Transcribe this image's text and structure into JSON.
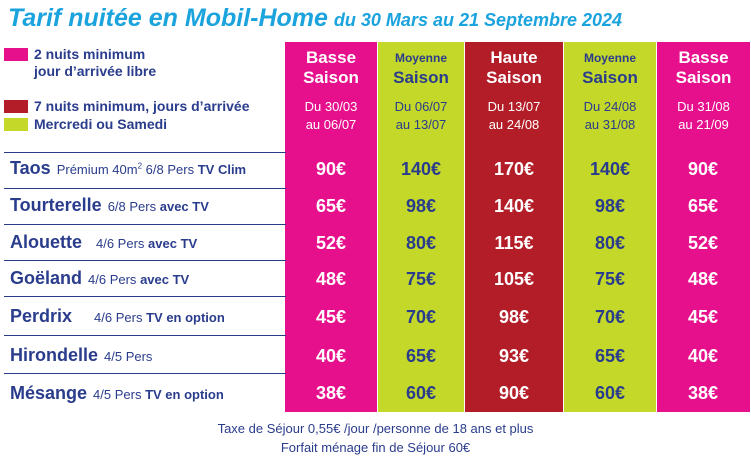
{
  "title": {
    "main": "Tarif nuitée en Mobil-Home",
    "sub": "du 30 Mars au 21 Septembre 2024"
  },
  "legend": [
    {
      "color": "#e6108c",
      "line1": "2 nuits minimum",
      "line2": "jour d’arrivée libre"
    },
    {
      "color": "#b21d28",
      "line1": "7 nuits minimum, jours d’arrivée",
      "line2": ""
    },
    {
      "color": "#c4d82a",
      "line1": "Mercredi ou Samedi",
      "line2": ""
    }
  ],
  "seasons": [
    {
      "l1": "Basse",
      "l2": "Saison",
      "d1": "Du 30/03",
      "d2": "au 06/07"
    },
    {
      "l1": "Moyenne",
      "l2": "Saison",
      "d1": "Du 06/07",
      "d2": "au 13/07"
    },
    {
      "l1": "Haute",
      "l2": "Saison",
      "d1": "Du 13/07",
      "d2": "au 24/08"
    },
    {
      "l1": "Moyenne",
      "l2": "Saison",
      "d1": "Du 24/08",
      "d2": "au 31/08"
    },
    {
      "l1": "Basse",
      "l2": "Saison",
      "d1": "Du 31/08",
      "d2": "au 21/09"
    }
  ],
  "rows": [
    {
      "name": "Taos",
      "desc_pre": "Prémium 40m",
      "sup": "2",
      "desc_mid": " 6/8 Pers",
      "desc_bold": "TV Clim",
      "prices": [
        "90€",
        "140€",
        "170€",
        "140€",
        "90€"
      ]
    },
    {
      "name": "Tourterelle",
      "desc_pre": "6/8 Pers",
      "sup": "",
      "desc_mid": "",
      "desc_bold": "avec TV",
      "prices": [
        "65€",
        "98€",
        "140€",
        "98€",
        "65€"
      ]
    },
    {
      "name": "Alouette",
      "desc_pre": "4/6 Pers",
      "sup": "",
      "desc_mid": "",
      "desc_bold": "avec TV",
      "prices": [
        "52€",
        "80€",
        "115€",
        "80€",
        "52€"
      ]
    },
    {
      "name": "Goëland",
      "desc_pre": "4/6 Pers",
      "sup": "",
      "desc_mid": "",
      "desc_bold": "avec TV",
      "prices": [
        "48€",
        "75€",
        "105€",
        "75€",
        "48€"
      ]
    },
    {
      "name": "Perdrix",
      "desc_pre": "4/6 Pers",
      "sup": "",
      "desc_mid": "",
      "desc_bold": "TV en option",
      "prices": [
        "45€",
        "70€",
        "98€",
        "70€",
        "45€"
      ]
    },
    {
      "name": "Hirondelle",
      "desc_pre": "4/5 Pers",
      "sup": "",
      "desc_mid": "",
      "desc_bold": "",
      "prices": [
        "40€",
        "65€",
        "93€",
        "65€",
        "40€"
      ]
    },
    {
      "name": "Mésange",
      "desc_pre": "4/5 Pers",
      "sup": "",
      "desc_mid": "",
      "desc_bold": "TV en option",
      "prices": [
        "38€",
        "60€",
        "90€",
        "60€",
        "38€"
      ]
    }
  ],
  "footer": {
    "line1": "Taxe de Séjour  0,55€ /jour /personne de 18 ans et plus",
    "line2": "Forfait ménage fin de Séjour 60€"
  },
  "colors": {
    "pink": "#e6108c",
    "green": "#c4d82a",
    "red": "#b21d28",
    "title": "#1ba3dd",
    "text": "#2a3c8c"
  }
}
